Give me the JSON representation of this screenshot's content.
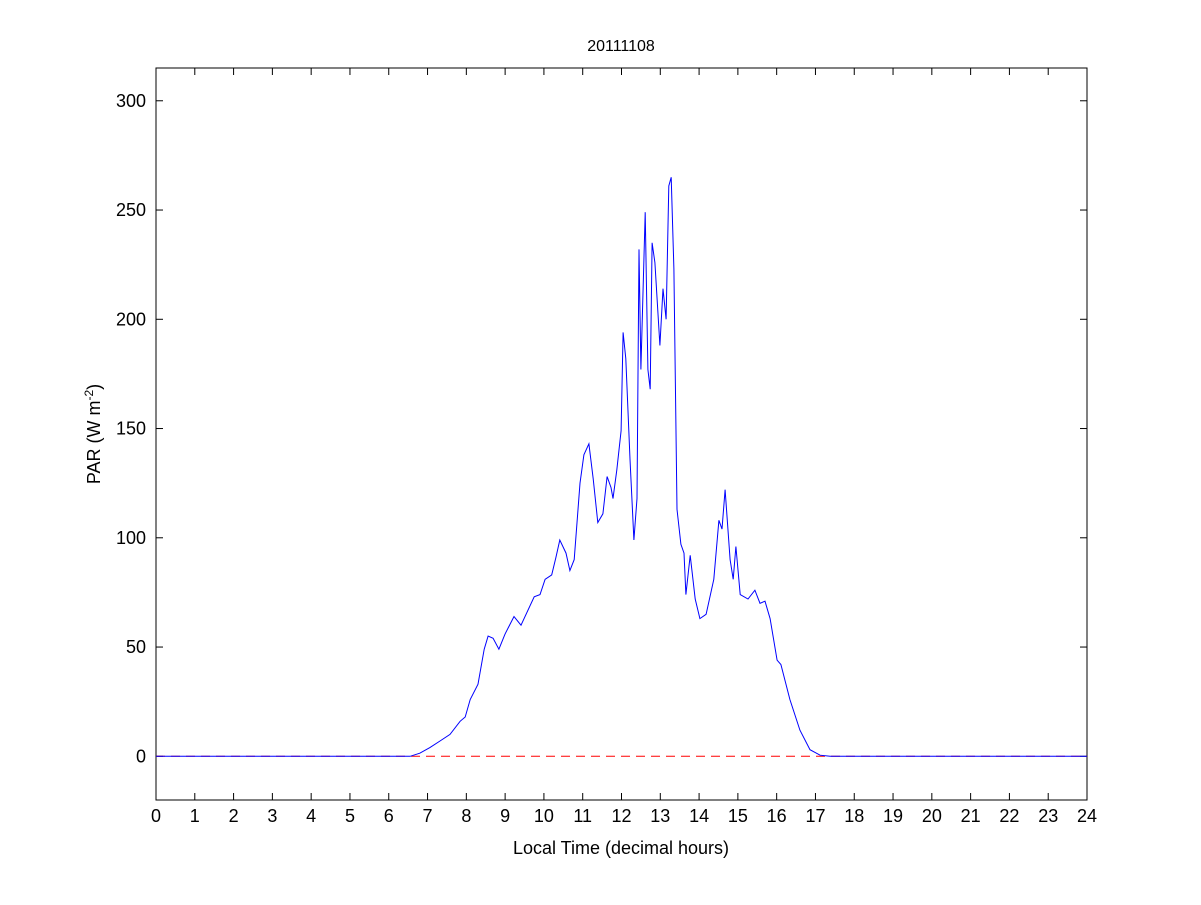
{
  "chart_data": {
    "type": "line",
    "title": "20111108",
    "xlabel": "Local Time (decimal hours)",
    "ylabel": {
      "prefix": "PAR (W m",
      "sup": "-2",
      "suffix": ")"
    },
    "xlim": [
      0,
      24
    ],
    "ylim": [
      -20,
      315
    ],
    "xticks": [
      0,
      1,
      2,
      3,
      4,
      5,
      6,
      7,
      8,
      9,
      10,
      11,
      12,
      13,
      14,
      15,
      16,
      17,
      18,
      19,
      20,
      21,
      22,
      23,
      24
    ],
    "yticks": [
      0,
      50,
      100,
      150,
      200,
      250,
      300
    ],
    "grid": false,
    "colors": {
      "series": "#0000ff",
      "reference": "#ff0000"
    },
    "reference_line": {
      "y": 0,
      "style": "dashed"
    },
    "series": [
      {
        "x": [
          0,
          6.55,
          6.8,
          7.06,
          7.32,
          7.58,
          7.84,
          7.97,
          8.1,
          8.3,
          8.46,
          8.56,
          8.69,
          8.84,
          9.0,
          9.23,
          9.41,
          9.75,
          9.9,
          10.03,
          10.2,
          10.31,
          10.41,
          10.57,
          10.67,
          10.78,
          10.93,
          11.03,
          11.16,
          11.27,
          11.39,
          11.52,
          11.63,
          11.73,
          11.78,
          11.88,
          11.99,
          12.04,
          12.11,
          12.22,
          12.32,
          12.4,
          12.45,
          12.5,
          12.61,
          12.68,
          12.74,
          12.79,
          12.86,
          12.99,
          13.07,
          13.15,
          13.22,
          13.28,
          13.35,
          13.43,
          13.53,
          13.61,
          13.66,
          13.77,
          13.9,
          14.02,
          14.18,
          14.38,
          14.51,
          14.59,
          14.67,
          14.8,
          14.88,
          14.95,
          15.06,
          15.26,
          15.44,
          15.57,
          15.7,
          15.83,
          16.01,
          16.11,
          16.34,
          16.6,
          16.86,
          17.12,
          17.38,
          24
        ],
        "y": [
          0,
          0,
          1.4,
          4,
          7,
          10,
          16,
          18,
          26,
          33,
          49,
          55,
          54,
          49,
          56,
          64,
          60,
          73,
          74,
          81,
          83,
          91,
          99,
          93,
          85,
          90,
          125,
          138,
          143,
          127,
          107,
          111,
          128,
          123,
          118,
          131,
          149,
          194,
          182,
          136,
          99,
          118,
          232,
          177,
          249,
          177,
          168,
          235,
          226,
          188,
          214,
          200,
          261,
          265,
          223,
          113,
          97,
          93,
          74,
          92,
          72,
          63,
          65,
          81,
          108,
          104,
          122,
          90,
          81,
          96,
          74,
          72,
          76,
          70,
          71,
          63,
          44,
          42,
          26,
          12,
          3,
          0.5,
          0,
          0
        ]
      }
    ]
  }
}
